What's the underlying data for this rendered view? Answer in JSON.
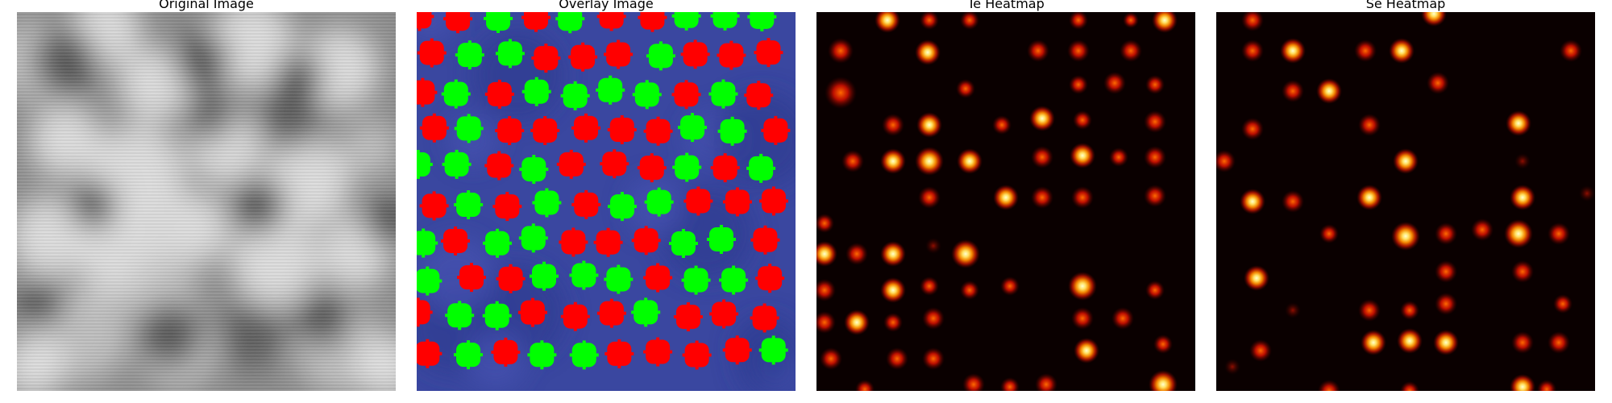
{
  "panels": [
    {
      "key": "original",
      "title": "Original Image"
    },
    {
      "key": "overlay",
      "title": "Overlay Image"
    },
    {
      "key": "te",
      "title": "Te Heatmap"
    },
    {
      "key": "se",
      "title": "Se Heatmap"
    }
  ],
  "colors": {
    "overlay_background": "#3a47a0",
    "te_marker": "#00ff00",
    "se_marker": "#ff0000",
    "heatmap_background": "#0a0000",
    "heatmap_core": "#ffffc0",
    "heatmap_mid": "#ff9c00",
    "heatmap_edge": "#cc0000"
  },
  "icons": {
    "overlay_marker_shape": "rounded-square-with-notched-corners"
  }
}
